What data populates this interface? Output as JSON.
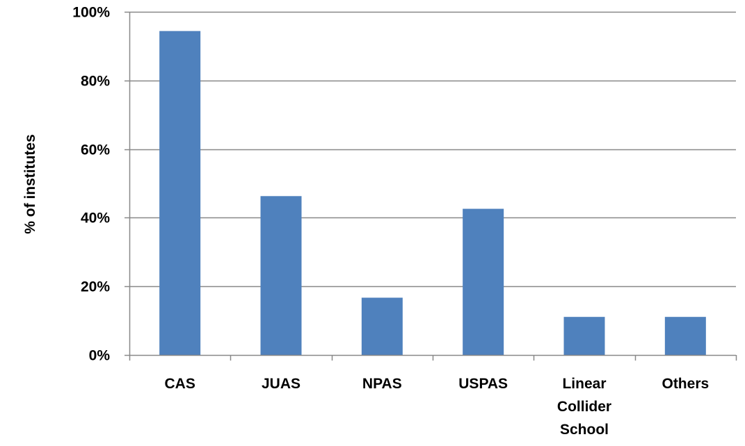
{
  "chart_data": {
    "type": "bar",
    "title": "",
    "xlabel": "",
    "ylabel": "% of institutes",
    "categories": [
      "CAS",
      "JUAS",
      "NPAS",
      "USPAS",
      "Linear Collider School",
      "Others"
    ],
    "category_lines": [
      [
        "CAS"
      ],
      [
        "JUAS"
      ],
      [
        "NPAS"
      ],
      [
        "USPAS"
      ],
      [
        "Linear",
        "Collider",
        "School"
      ],
      [
        "Others"
      ]
    ],
    "values": [
      94.4,
      46.3,
      16.7,
      42.6,
      11.1,
      11.1
    ],
    "ylim": [
      0,
      100
    ],
    "yticks": [
      0,
      20,
      40,
      60,
      80,
      100
    ],
    "ytick_labels": [
      "0%",
      "20%",
      "40%",
      "60%",
      "80%",
      "100%"
    ],
    "grid": true,
    "legend": "none",
    "colors": {
      "bar": "#4F81BD",
      "grid": "#888888",
      "axis": "#888888"
    }
  }
}
